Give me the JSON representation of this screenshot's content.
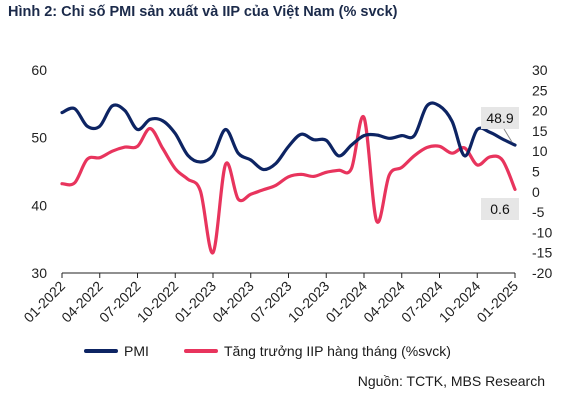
{
  "title": "Hình 2: Chỉ số PMI sản xuất và IIP của Việt Nam (% svck)",
  "source": "Nguồn: TCTK, MBS Research",
  "legend": {
    "pmi": "PMI",
    "iip": "Tăng trưởng IIP hàng tháng (%svck)"
  },
  "colors": {
    "pmi": "#0d2463",
    "iip": "#e8345d",
    "callout_bg": "#e6e6e6"
  },
  "chart_data": {
    "type": "line",
    "x_tick_labels": [
      "01-2022",
      "04-2022",
      "07-2022",
      "10-2022",
      "01-2023",
      "04-2023",
      "07-2023",
      "10-2023",
      "01-2024",
      "04-2024",
      "07-2024",
      "10-2024",
      "01-2025"
    ],
    "y_left_ticks": [
      "60",
      "50",
      "40",
      "30"
    ],
    "y_right_ticks": [
      "30",
      "25",
      "20",
      "15",
      "10",
      "5",
      "0",
      "-5",
      "-10",
      "-15",
      "-20"
    ],
    "y_left_range": [
      30,
      60
    ],
    "y_right_range": [
      -20,
      30
    ],
    "x": [
      "01-2022",
      "02-2022",
      "03-2022",
      "04-2022",
      "05-2022",
      "06-2022",
      "07-2022",
      "08-2022",
      "09-2022",
      "10-2022",
      "11-2022",
      "12-2022",
      "01-2023",
      "02-2023",
      "03-2023",
      "04-2023",
      "05-2023",
      "06-2023",
      "07-2023",
      "08-2023",
      "09-2023",
      "10-2023",
      "11-2023",
      "12-2023",
      "01-2024",
      "02-2024",
      "03-2024",
      "04-2024",
      "05-2024",
      "06-2024",
      "07-2024",
      "08-2024",
      "09-2024",
      "10-2024",
      "11-2024",
      "12-2024",
      "01-2025"
    ],
    "series": [
      {
        "name": "PMI",
        "axis": "left",
        "values": [
          53.7,
          54.3,
          51.7,
          51.7,
          54.7,
          54.0,
          51.2,
          52.7,
          52.5,
          50.6,
          47.4,
          46.4,
          47.4,
          51.2,
          47.7,
          46.7,
          45.3,
          46.2,
          48.7,
          50.5,
          49.7,
          49.6,
          47.3,
          48.9,
          50.3,
          50.4,
          49.9,
          50.3,
          50.3,
          54.7,
          54.7,
          52.4,
          47.3,
          51.2,
          50.8,
          49.8,
          48.9
        ]
      },
      {
        "name": "Tăng trưởng IIP hàng tháng (%svck)",
        "axis": "right",
        "values": [
          2.0,
          2.2,
          8.0,
          8.4,
          10.0,
          11.0,
          11.2,
          15.6,
          10.7,
          5.7,
          3.1,
          0.2,
          -15.0,
          6.8,
          -1.8,
          -0.6,
          0.5,
          1.6,
          3.7,
          4.3,
          3.8,
          4.8,
          5.3,
          5.7,
          18.3,
          -7.2,
          4.1,
          6.0,
          8.9,
          10.9,
          11.2,
          9.5,
          10.8,
          6.6,
          8.6,
          7.8,
          0.6
        ]
      }
    ],
    "annotations": [
      {
        "series": "PMI",
        "label": "48.9"
      },
      {
        "series": "Tăng trưởng IIP hàng tháng (%svck)",
        "label": "0.6"
      }
    ],
    "grid": false,
    "legend_position": "bottom"
  }
}
